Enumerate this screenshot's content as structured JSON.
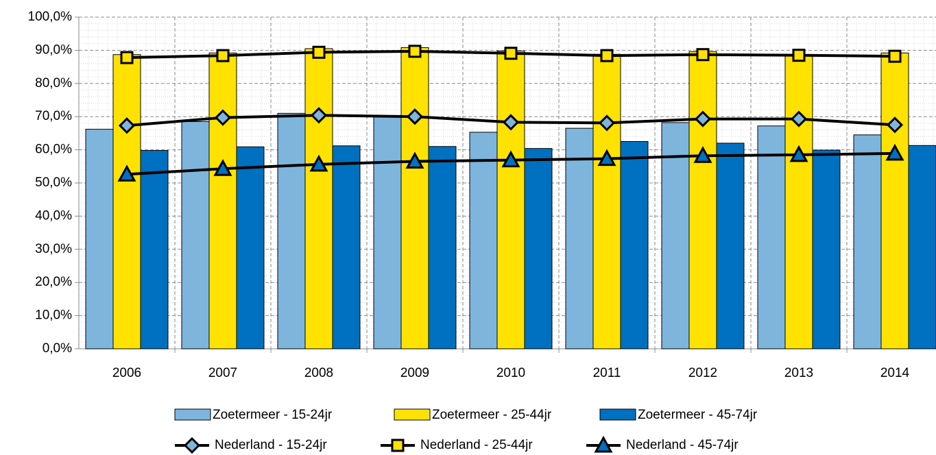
{
  "chart_data": {
    "type": "bar",
    "categories": [
      "2006",
      "2007",
      "2008",
      "2009",
      "2010",
      "2011",
      "2012",
      "2013",
      "2014"
    ],
    "series": [
      {
        "name": "Zoetermeer - 15-24jr",
        "type": "bar",
        "color": "#7eb5dd",
        "values": [
          66.2,
          68.5,
          71.0,
          70.2,
          65.3,
          66.5,
          68.2,
          67.2,
          64.5
        ]
      },
      {
        "name": "Zoetermeer - 25-44jr",
        "type": "bar",
        "color": "#ffe200",
        "values": [
          88.7,
          89.2,
          90.5,
          90.8,
          89.8,
          88.8,
          89.6,
          88.7,
          89.2
        ]
      },
      {
        "name": "Zoetermeer - 45-74jr",
        "type": "bar",
        "color": "#0070c0",
        "values": [
          59.8,
          60.9,
          61.2,
          61.0,
          60.4,
          62.5,
          62.0,
          59.9,
          61.3
        ]
      },
      {
        "name": "Nederland - 15-24jr",
        "type": "line",
        "marker": "diamond",
        "color": "#7eb5dd",
        "values": [
          67.3,
          69.7,
          70.4,
          70.0,
          68.3,
          68.1,
          69.3,
          69.3,
          67.5
        ]
      },
      {
        "name": "Nederland - 25-44jr",
        "type": "line",
        "marker": "square",
        "color": "#ffe200",
        "values": [
          87.8,
          88.4,
          89.4,
          89.7,
          89.1,
          88.4,
          88.7,
          88.5,
          88.2
        ]
      },
      {
        "name": "Nederland - 45-74jr",
        "type": "line",
        "marker": "triangle",
        "color": "#0070c0",
        "values": [
          52.6,
          54.3,
          55.6,
          56.5,
          56.9,
          57.3,
          58.2,
          58.5,
          58.9
        ]
      }
    ],
    "ylim": [
      0,
      100
    ],
    "yticks": [
      {
        "value": 0,
        "label": "0,0%"
      },
      {
        "value": 10,
        "label": "10,0%"
      },
      {
        "value": 20,
        "label": "20,0%"
      },
      {
        "value": 30,
        "label": "30,0%"
      },
      {
        "value": 40,
        "label": "40,0%"
      },
      {
        "value": 50,
        "label": "50,0%"
      },
      {
        "value": 60,
        "label": "60,0%"
      },
      {
        "value": 70,
        "label": "70,0%"
      },
      {
        "value": 80,
        "label": "80,0%"
      },
      {
        "value": 90,
        "label": "90,0%"
      },
      {
        "value": 100,
        "label": "100,0%"
      }
    ],
    "grid": true,
    "legend": "bottom"
  }
}
